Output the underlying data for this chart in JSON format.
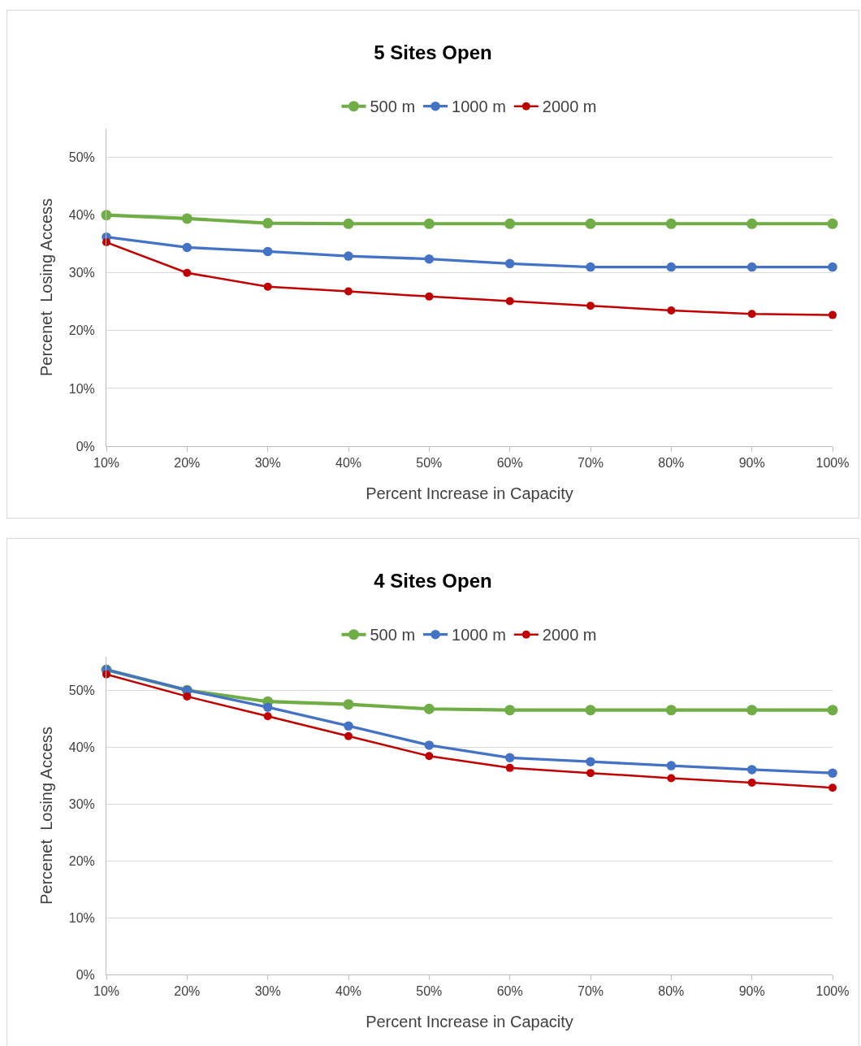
{
  "chart_data": [
    {
      "type": "line",
      "title": "5 Sites Open",
      "xlabel": "Percent Increase in Capacity",
      "ylabel": "Percenet  Losing Access",
      "categories": [
        "10%",
        "20%",
        "30%",
        "40%",
        "50%",
        "60%",
        "70%",
        "80%",
        "90%",
        "100%"
      ],
      "ylim": [
        0,
        55
      ],
      "yticks": [
        {
          "value": 0,
          "label": "0%"
        },
        {
          "value": 10,
          "label": "10%"
        },
        {
          "value": 20,
          "label": "20%"
        },
        {
          "value": 30,
          "label": "30%"
        },
        {
          "value": 40,
          "label": "40%"
        },
        {
          "value": 50,
          "label": "50%"
        }
      ],
      "grid": "y",
      "legend": "top",
      "marker": "circle",
      "line_style": "solid",
      "series": [
        {
          "name": "500 m",
          "color": "#70ad47",
          "values": [
            40,
            39.4,
            38.6,
            38.5,
            38.5,
            38.5,
            38.5,
            38.5,
            38.5,
            38.5
          ]
        },
        {
          "name": "1000 m",
          "color": "#4472c4",
          "values": [
            36.2,
            34.4,
            33.7,
            32.9,
            32.4,
            31.6,
            31,
            31,
            31,
            31
          ]
        },
        {
          "name": "2000 m",
          "color": "#c00000",
          "values": [
            35.3,
            30,
            27.6,
            26.8,
            25.9,
            25.1,
            24.3,
            23.5,
            22.9,
            22.7
          ]
        }
      ]
    },
    {
      "type": "line",
      "title": "4 Sites Open",
      "xlabel": "Percent Increase in Capacity",
      "ylabel": "Percenet  Losing Access",
      "categories": [
        "10%",
        "20%",
        "30%",
        "40%",
        "50%",
        "60%",
        "70%",
        "80%",
        "90%",
        "100%"
      ],
      "ylim": [
        0,
        56
      ],
      "yticks": [
        {
          "value": 0,
          "label": "0%"
        },
        {
          "value": 10,
          "label": "10%"
        },
        {
          "value": 20,
          "label": "20%"
        },
        {
          "value": 30,
          "label": "30%"
        },
        {
          "value": 40,
          "label": "40%"
        },
        {
          "value": 50,
          "label": "50%"
        }
      ],
      "grid": "y",
      "legend": "top",
      "marker": "circle",
      "line_style": "solid",
      "series": [
        {
          "name": "500 m",
          "color": "#70ad47",
          "values": [
            53.7,
            50.1,
            48.1,
            47.6,
            46.8,
            46.6,
            46.6,
            46.6,
            46.6,
            46.6
          ]
        },
        {
          "name": "1000 m",
          "color": "#4472c4",
          "values": [
            53.7,
            50.1,
            47.1,
            43.8,
            40.4,
            38.2,
            37.5,
            36.8,
            36.1,
            35.5
          ]
        },
        {
          "name": "2000 m",
          "color": "#c00000",
          "values": [
            52.9,
            49,
            45.5,
            42,
            38.5,
            36.4,
            35.5,
            34.6,
            33.8,
            32.9
          ]
        }
      ]
    }
  ]
}
